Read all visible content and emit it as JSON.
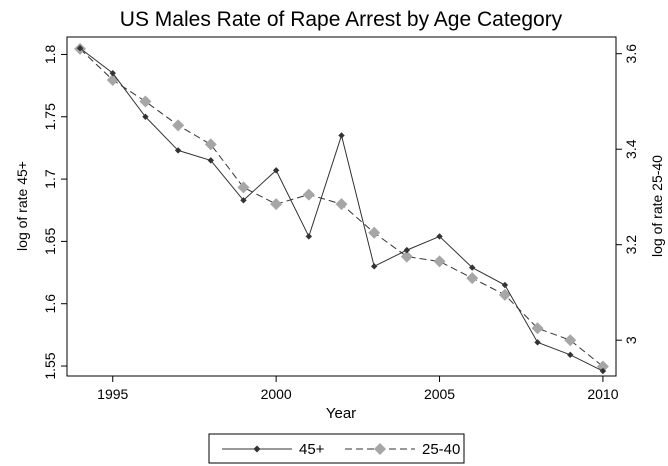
{
  "chart_data": {
    "type": "line",
    "title": "US Males Rate of Rape Arrest by Age Category",
    "xlabel": "Year",
    "ylabel_left": "log of rate 45+",
    "ylabel_right": "log of rate 25-40",
    "x": [
      1994,
      1995,
      1996,
      1997,
      1998,
      1999,
      2000,
      2001,
      2002,
      2003,
      2004,
      2005,
      2006,
      2007,
      2008,
      2009,
      2010
    ],
    "xlim": [
      1993.6,
      2010.4
    ],
    "ylim_left": [
      1.542,
      1.814
    ],
    "ylim_right": [
      2.925,
      3.635
    ],
    "xticks": [
      1995,
      2000,
      2005,
      2010
    ],
    "yticks_left": [
      1.55,
      1.6,
      1.65,
      1.7,
      1.75,
      1.8
    ],
    "yticks_right": [
      3.0,
      3.2,
      3.4,
      3.6
    ],
    "xtick_labels": [
      "1995",
      "2000",
      "2005",
      "2010"
    ],
    "ytick_labels_left": [
      "1.55",
      "1.6",
      "1.65",
      "1.7",
      "1.75",
      "1.8"
    ],
    "ytick_labels_right": [
      "3",
      "3.2",
      "3.4",
      "3.6"
    ],
    "series": [
      {
        "name": "45+",
        "axis": "left",
        "line_style": "solid",
        "marker": "small-diamond",
        "color": "#333333",
        "values": [
          1.805,
          1.785,
          1.75,
          1.723,
          1.715,
          1.683,
          1.707,
          1.654,
          1.735,
          1.63,
          1.643,
          1.654,
          1.629,
          1.615,
          1.569,
          1.559,
          1.546
        ]
      },
      {
        "name": "25-40",
        "axis": "right",
        "line_style": "dashed",
        "marker": "large-diamond",
        "color": "#a6a6a6",
        "values": [
          3.61,
          3.545,
          3.5,
          3.45,
          3.41,
          3.32,
          3.285,
          3.305,
          3.285,
          3.225,
          3.175,
          3.165,
          3.13,
          3.095,
          3.025,
          3.0,
          2.945
        ]
      }
    ],
    "grid": false,
    "legend_position": "bottom-center"
  }
}
